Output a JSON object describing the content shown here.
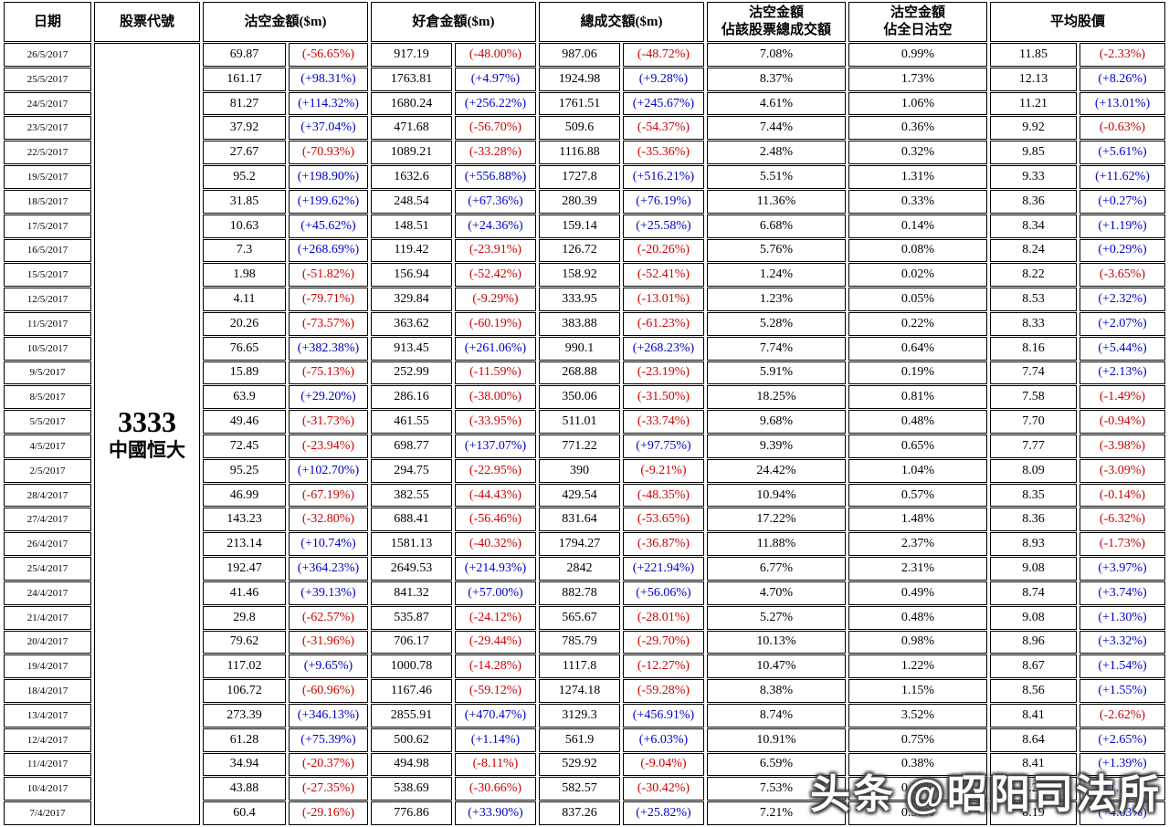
{
  "header": {
    "date": "日期",
    "code": "股票代號",
    "short": "沽空金額($m)",
    "long": "好倉金額($m)",
    "total": "總成交額($m)",
    "turnover": {
      "line1": "沽空金額",
      "line2": "佔該股票總成交額"
    },
    "daily": {
      "line1": "沽空金額",
      "line2": "佔全日沽空"
    },
    "avg": "平均股價"
  },
  "stock": {
    "code": "3333",
    "name": "中國恒大"
  },
  "watermark": {
    "logo": "头条",
    "handle": "@昭阳司法所"
  },
  "colors": {
    "positive": "#0000cc",
    "negative": "#cc0000"
  },
  "row_fields": [
    "date",
    "short_amount",
    "short_change",
    "long_amount",
    "long_change",
    "total_amount",
    "total_change",
    "pct_of_stock_turnover",
    "pct_of_daily_short",
    "avg_price",
    "avg_price_change"
  ],
  "rows": [
    [
      "26/5/2017",
      "69.87",
      "(-56.65%)",
      "917.19",
      "(-48.00%)",
      "987.06",
      "(-48.72%)",
      "7.08%",
      "0.99%",
      "11.85",
      "(-2.33%)"
    ],
    [
      "25/5/2017",
      "161.17",
      "(+98.31%)",
      "1763.81",
      "(+4.97%)",
      "1924.98",
      "(+9.28%)",
      "8.37%",
      "1.73%",
      "12.13",
      "(+8.26%)"
    ],
    [
      "24/5/2017",
      "81.27",
      "(+114.32%)",
      "1680.24",
      "(+256.22%)",
      "1761.51",
      "(+245.67%)",
      "4.61%",
      "1.06%",
      "11.21",
      "(+13.01%)"
    ],
    [
      "23/5/2017",
      "37.92",
      "(+37.04%)",
      "471.68",
      "(-56.70%)",
      "509.6",
      "(-54.37%)",
      "7.44%",
      "0.36%",
      "9.92",
      "(-0.63%)"
    ],
    [
      "22/5/2017",
      "27.67",
      "(-70.93%)",
      "1089.21",
      "(-33.28%)",
      "1116.88",
      "(-35.36%)",
      "2.48%",
      "0.32%",
      "9.85",
      "(+5.61%)"
    ],
    [
      "19/5/2017",
      "95.2",
      "(+198.90%)",
      "1632.6",
      "(+556.88%)",
      "1727.8",
      "(+516.21%)",
      "5.51%",
      "1.31%",
      "9.33",
      "(+11.62%)"
    ],
    [
      "18/5/2017",
      "31.85",
      "(+199.62%)",
      "248.54",
      "(+67.36%)",
      "280.39",
      "(+76.19%)",
      "11.36%",
      "0.33%",
      "8.36",
      "(+0.27%)"
    ],
    [
      "17/5/2017",
      "10.63",
      "(+45.62%)",
      "148.51",
      "(+24.36%)",
      "159.14",
      "(+25.58%)",
      "6.68%",
      "0.14%",
      "8.34",
      "(+1.19%)"
    ],
    [
      "16/5/2017",
      "7.3",
      "(+268.69%)",
      "119.42",
      "(-23.91%)",
      "126.72",
      "(-20.26%)",
      "5.76%",
      "0.08%",
      "8.24",
      "(+0.29%)"
    ],
    [
      "15/5/2017",
      "1.98",
      "(-51.82%)",
      "156.94",
      "(-52.42%)",
      "158.92",
      "(-52.41%)",
      "1.24%",
      "0.02%",
      "8.22",
      "(-3.65%)"
    ],
    [
      "12/5/2017",
      "4.11",
      "(-79.71%)",
      "329.84",
      "(-9.29%)",
      "333.95",
      "(-13.01%)",
      "1.23%",
      "0.05%",
      "8.53",
      "(+2.32%)"
    ],
    [
      "11/5/2017",
      "20.26",
      "(-73.57%)",
      "363.62",
      "(-60.19%)",
      "383.88",
      "(-61.23%)",
      "5.28%",
      "0.22%",
      "8.33",
      "(+2.07%)"
    ],
    [
      "10/5/2017",
      "76.65",
      "(+382.38%)",
      "913.45",
      "(+261.06%)",
      "990.1",
      "(+268.23%)",
      "7.74%",
      "0.64%",
      "8.16",
      "(+5.44%)"
    ],
    [
      "9/5/2017",
      "15.89",
      "(-75.13%)",
      "252.99",
      "(-11.59%)",
      "268.88",
      "(-23.19%)",
      "5.91%",
      "0.19%",
      "7.74",
      "(+2.13%)"
    ],
    [
      "8/5/2017",
      "63.9",
      "(+29.20%)",
      "286.16",
      "(-38.00%)",
      "350.06",
      "(-31.50%)",
      "18.25%",
      "0.81%",
      "7.58",
      "(-1.49%)"
    ],
    [
      "5/5/2017",
      "49.46",
      "(-31.73%)",
      "461.55",
      "(-33.95%)",
      "511.01",
      "(-33.74%)",
      "9.68%",
      "0.48%",
      "7.70",
      "(-0.94%)"
    ],
    [
      "4/5/2017",
      "72.45",
      "(-23.94%)",
      "698.77",
      "(+137.07%)",
      "771.22",
      "(+97.75%)",
      "9.39%",
      "0.65%",
      "7.77",
      "(-3.98%)"
    ],
    [
      "2/5/2017",
      "95.25",
      "(+102.70%)",
      "294.75",
      "(-22.95%)",
      "390",
      "(-9.21%)",
      "24.42%",
      "1.04%",
      "8.09",
      "(-3.09%)"
    ],
    [
      "28/4/2017",
      "46.99",
      "(-67.19%)",
      "382.55",
      "(-44.43%)",
      "429.54",
      "(-48.35%)",
      "10.94%",
      "0.57%",
      "8.35",
      "(-0.14%)"
    ],
    [
      "27/4/2017",
      "143.23",
      "(-32.80%)",
      "688.41",
      "(-56.46%)",
      "831.64",
      "(-53.65%)",
      "17.22%",
      "1.48%",
      "8.36",
      "(-6.32%)"
    ],
    [
      "26/4/2017",
      "213.14",
      "(+10.74%)",
      "1581.13",
      "(-40.32%)",
      "1794.27",
      "(-36.87%)",
      "11.88%",
      "2.37%",
      "8.93",
      "(-1.73%)"
    ],
    [
      "25/4/2017",
      "192.47",
      "(+364.23%)",
      "2649.53",
      "(+214.93%)",
      "2842",
      "(+221.94%)",
      "6.77%",
      "2.31%",
      "9.08",
      "(+3.97%)"
    ],
    [
      "24/4/2017",
      "41.46",
      "(+39.13%)",
      "841.32",
      "(+57.00%)",
      "882.78",
      "(+56.06%)",
      "4.70%",
      "0.49%",
      "8.74",
      "(+3.74%)"
    ],
    [
      "21/4/2017",
      "29.8",
      "(-62.57%)",
      "535.87",
      "(-24.12%)",
      "565.67",
      "(-28.01%)",
      "5.27%",
      "0.48%",
      "9.08",
      "(+1.30%)"
    ],
    [
      "20/4/2017",
      "79.62",
      "(-31.96%)",
      "706.17",
      "(-29.44%)",
      "785.79",
      "(-29.70%)",
      "10.13%",
      "0.98%",
      "8.96",
      "(+3.32%)"
    ],
    [
      "19/4/2017",
      "117.02",
      "(+9.65%)",
      "1000.78",
      "(-14.28%)",
      "1117.8",
      "(-12.27%)",
      "10.47%",
      "1.22%",
      "8.67",
      "(+1.54%)"
    ],
    [
      "18/4/2017",
      "106.72",
      "(-60.96%)",
      "1167.46",
      "(-59.12%)",
      "1274.18",
      "(-59.28%)",
      "8.38%",
      "1.15%",
      "8.56",
      "(+1.55%)"
    ],
    [
      "13/4/2017",
      "273.39",
      "(+346.13%)",
      "2855.91",
      "(+470.47%)",
      "3129.3",
      "(+456.91%)",
      "8.74%",
      "3.52%",
      "8.41",
      "(-2.62%)"
    ],
    [
      "12/4/2017",
      "61.28",
      "(+75.39%)",
      "500.62",
      "(+1.14%)",
      "561.9",
      "(+6.03%)",
      "10.91%",
      "0.75%",
      "8.64",
      "(+2.65%)"
    ],
    [
      "11/4/2017",
      "34.94",
      "(-20.37%)",
      "494.98",
      "(-8.11%)",
      "529.92",
      "(-9.04%)",
      "6.59%",
      "0.38%",
      "8.41",
      "(+1.39%)"
    ],
    [
      "10/4/2017",
      "43.88",
      "(-27.35%)",
      "538.69",
      "(-30.66%)",
      "582.57",
      "(-30.42%)",
      "7.53%",
      "0.38%",
      "8.29",
      "(+1.28%)"
    ],
    [
      "7/4/2017",
      "60.4",
      "(-29.16%)",
      "776.86",
      "(+33.90%)",
      "837.26",
      "(+25.82%)",
      "7.21%",
      "0.50%",
      "8.19",
      "(+4.63%)"
    ]
  ]
}
